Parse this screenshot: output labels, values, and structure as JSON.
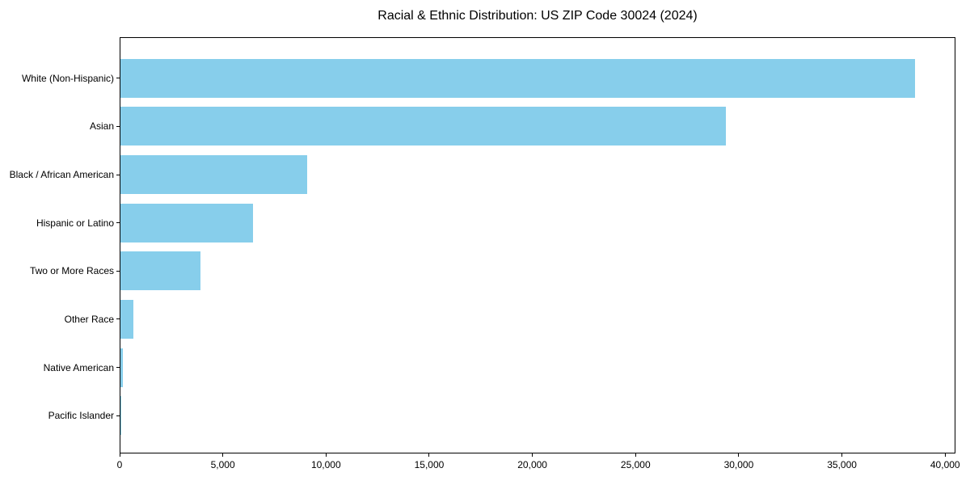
{
  "figure": {
    "title": "Racial & Ethnic Distribution: US ZIP Code 30024 (2024)"
  },
  "chart_data": {
    "type": "bar",
    "orientation": "horizontal",
    "title": "Racial & Ethnic Distribution: US ZIP Code 30024 (2024)",
    "categories": [
      "White (Non-Hispanic)",
      "Asian",
      "Black / African American",
      "Hispanic or Latino",
      "Two or More Races",
      "Other Race",
      "Native American",
      "Pacific Islander"
    ],
    "values": [
      38570,
      29390,
      9070,
      6420,
      3890,
      630,
      130,
      40
    ],
    "xlabel": "",
    "ylabel": "",
    "xlim": [
      0,
      40500
    ],
    "xticks": [
      0,
      5000,
      10000,
      15000,
      20000,
      25000,
      30000,
      35000,
      40000
    ],
    "xtick_labels": [
      "0",
      "5,000",
      "10,000",
      "15,000",
      "20,000",
      "25,000",
      "30,000",
      "35,000",
      "40,000"
    ],
    "bar_color": "#87CEEB",
    "grid": false,
    "legend": null,
    "plot_background": "#ffffff",
    "spine_color": "#000000"
  }
}
